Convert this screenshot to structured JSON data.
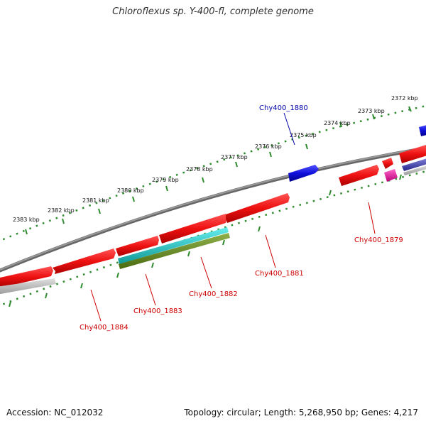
{
  "title": "Chloroflexus sp. Y-400-fl, complete genome",
  "accession": "Accession: NC_012032",
  "summary": "Topology: circular; Length: 5,268,950 bp; Genes: 4,217",
  "colors": {
    "backbone": "#7a7a7a",
    "tick": "#2e8b2e",
    "forward_gene": "#ee1111",
    "reverse_gene": "#ee1111",
    "highlight_gene": "#1010dd",
    "cyan_feature": "#22cccc",
    "olive_feature": "#6b8e23",
    "gray_feature": "#bbbbbb",
    "magenta_feature": "#ee1199",
    "navy_feature": "#2a2a99",
    "label_red": "#cc0000",
    "label_blue": "#0000aa"
  },
  "tick_labels": [
    "2372 kbp",
    "2373 kbp",
    "2374 kbp",
    "2375 kbp",
    "2376 kbp",
    "2377 kbp",
    "2378 kbp",
    "2379 kbp",
    "2380 kbp",
    "2381 kbp",
    "2382 kbp",
    "2383 kbp"
  ],
  "gene_labels": {
    "g1880": "Chy400_1880",
    "g1879": "Chy400_1879",
    "g1881": "Chy400_1881",
    "g1882": "Chy400_1882",
    "g1883": "Chy400_1883",
    "g1884": "Chy400_1884"
  }
}
